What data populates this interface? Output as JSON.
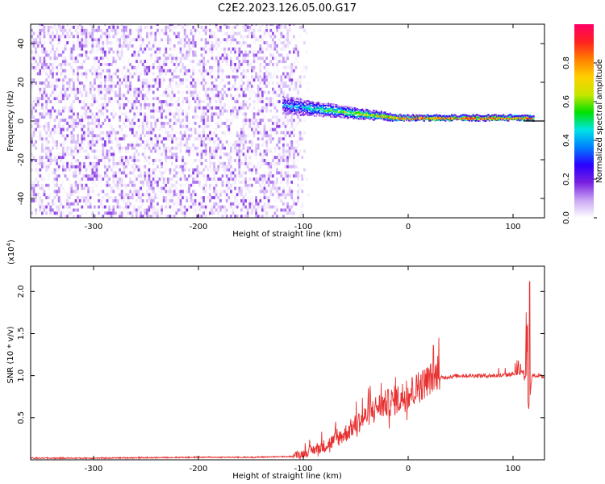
{
  "title": "C2E2.2023.126.05.00.G17",
  "chart_data": [
    {
      "type": "heatmap",
      "xlabel": "Height of straight line (km)",
      "ylabel": "Frequency (Hz)",
      "xlim": [
        -360,
        130
      ],
      "ylim": [
        -50,
        50
      ],
      "xticks": [
        -300,
        -200,
        -100,
        0,
        100
      ],
      "yticks": [
        -40,
        -20,
        0,
        20,
        40
      ],
      "colorbar": {
        "label": "Normalized spectral amplitude",
        "range": [
          0.0,
          1.0
        ],
        "ticks": [
          0.0,
          0.2,
          0.4,
          0.6,
          0.8
        ],
        "tick_labels": [
          "0.0",
          "0.2",
          "0.4",
          "0.6",
          "0.8"
        ],
        "colormap": [
          "#ffffff",
          "#c9a6f5",
          "#7a1fe0",
          "#2a00ff",
          "#0080ff",
          "#00e5e5",
          "#00e000",
          "#c8e600",
          "#ffd000",
          "#ff8000",
          "#ff2020",
          "#ff0066"
        ]
      },
      "features": {
        "noise_region_x": [
          -360,
          -110
        ],
        "signal_trace_x": [
          -120,
          120
        ],
        "signal_start_freq": 8,
        "signal_settled_freq": 1.5,
        "reference_line_freq": 0
      }
    },
    {
      "type": "line",
      "xlabel": "Height of straight line (km)",
      "ylabel": "SNR (10 * v/v)",
      "scale_label": "(x10",
      "scale_exponent": "4",
      "xlim": [
        -360,
        130
      ],
      "ylim": [
        0,
        2.3
      ],
      "xticks": [
        -300,
        -200,
        -100,
        0,
        100
      ],
      "yticks": [
        0.5,
        1.0,
        1.5,
        2.0
      ],
      "ytick_labels": [
        "0.5",
        "1.0",
        "1.5",
        "2.0"
      ],
      "color": "#e83030",
      "series": [
        {
          "x": [
            -360,
            -300,
            -200,
            -150,
            -110,
            -100,
            -90,
            -80,
            -70,
            -60,
            -50,
            -40,
            -30,
            -20,
            -10,
            0,
            10,
            20,
            30,
            40,
            50,
            60,
            70,
            80,
            90,
            100,
            105,
            110,
            113,
            115,
            118,
            120,
            125,
            130
          ],
          "values": [
            0.02,
            0.02,
            0.03,
            0.03,
            0.04,
            0.06,
            0.1,
            0.14,
            0.2,
            0.28,
            0.38,
            0.48,
            0.58,
            0.62,
            0.66,
            0.72,
            0.8,
            0.9,
            0.97,
            0.99,
            1.0,
            1.0,
            1.0,
            1.0,
            1.0,
            1.02,
            1.02,
            1.05,
            0.9,
            0.6,
            1.0,
            1.0,
            1.0,
            0.98
          ]
        }
      ]
    }
  ]
}
